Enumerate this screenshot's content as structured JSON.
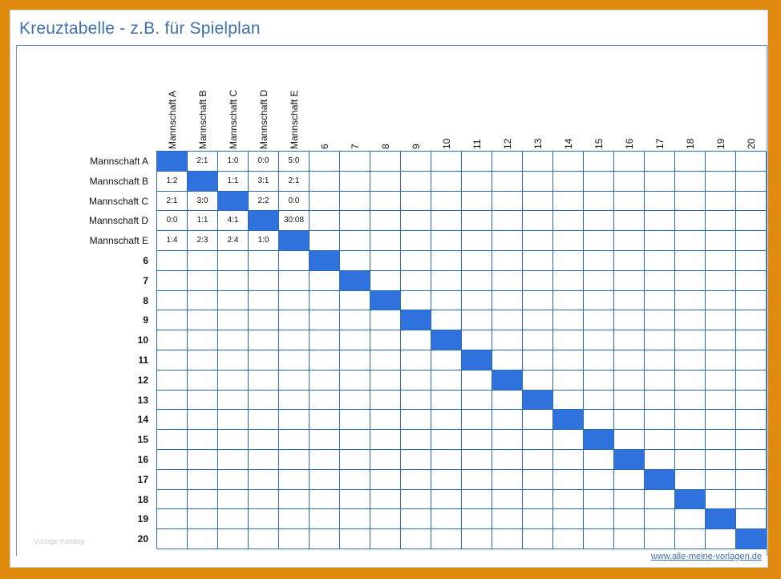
{
  "title": "Kreuztabelle - z.B. für Spielplan",
  "columns": [
    "Mannschaft A",
    "Mannschaft B",
    "Mannschaft C",
    "Mannschaft D",
    "Mannschaft E",
    "6",
    "7",
    "8",
    "9",
    "10",
    "11",
    "12",
    "13",
    "14",
    "15",
    "16",
    "17",
    "18",
    "19",
    "20"
  ],
  "rows": [
    "Mannschaft A",
    "Mannschaft B",
    "Mannschaft C",
    "Mannschaft D",
    "Mannschaft E",
    "6",
    "7",
    "8",
    "9",
    "10",
    "11",
    "12",
    "13",
    "14",
    "15",
    "16",
    "17",
    "18",
    "19",
    "20"
  ],
  "results": [
    [
      "",
      "2:1",
      "1:0",
      "0:0",
      "5:0"
    ],
    [
      "1:2",
      "",
      "1:1",
      "3:1",
      "2:1"
    ],
    [
      "2:1",
      "3:0",
      "",
      "2:2",
      "0:0"
    ],
    [
      "0:0",
      "1:1",
      "4:1",
      "",
      "30:08"
    ],
    [
      "1:4",
      "2:3",
      "2:4",
      "1:0",
      ""
    ]
  ],
  "footer_link": "www.alle-meine-vorlagen.de",
  "watermark": "Vorlage Katalog",
  "colors": {
    "diagonal": "#2f72dd",
    "grid": "#2b6cb0",
    "title": "#3d6fb0",
    "frame": "#e08a10"
  }
}
